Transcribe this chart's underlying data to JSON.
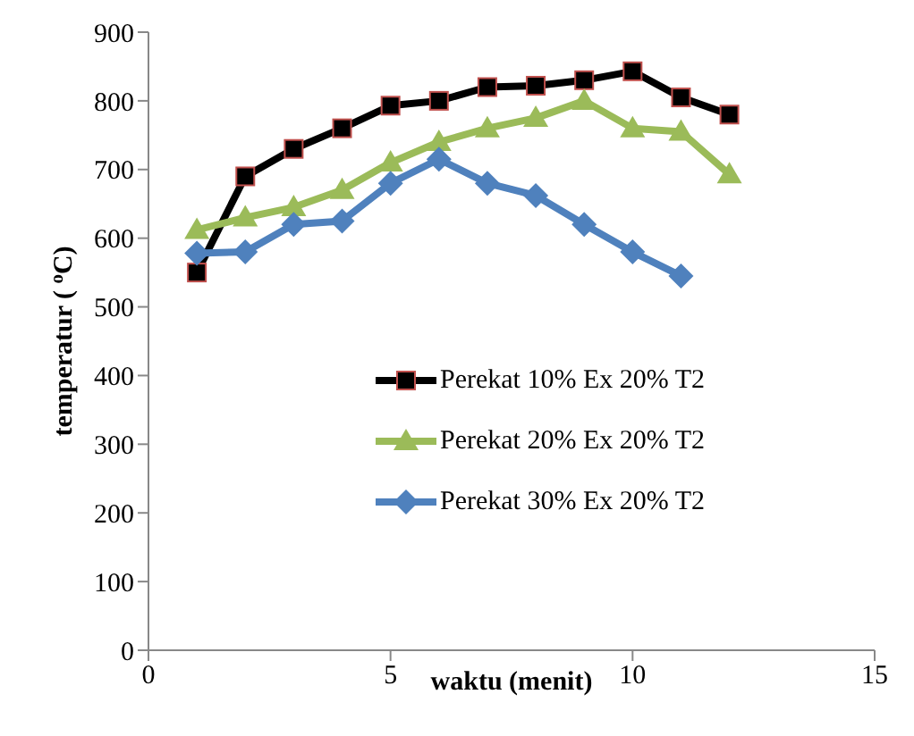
{
  "chart_data": {
    "type": "line",
    "xlabel": "waktu (menit)",
    "ylabel": "temperatur ( $^{o}$C)",
    "x": [
      1,
      2,
      3,
      4,
      5,
      6,
      7,
      8,
      9,
      10,
      11,
      12
    ],
    "xlim": [
      0,
      15
    ],
    "xticks": [
      0,
      5,
      10,
      15
    ],
    "ylim": [
      0,
      900
    ],
    "yticks": [
      0,
      100,
      200,
      300,
      400,
      500,
      600,
      700,
      800,
      900
    ],
    "grid": false,
    "legend": "right",
    "series": [
      {
        "name": "Perekat 10% Ex 20% T2",
        "color": "#000000",
        "marker": "square",
        "values": [
          550,
          690,
          730,
          760,
          793,
          800,
          820,
          822,
          830,
          843,
          805,
          780
        ]
      },
      {
        "name": "Perekat 20% Ex 20% T2",
        "color": "#9bbb59",
        "marker": "triangle",
        "values": [
          612,
          630,
          645,
          670,
          710,
          740,
          760,
          775,
          800,
          760,
          755,
          693
        ]
      },
      {
        "name": "Perekat 30% Ex 20% T2",
        "color": "#4f81bd",
        "marker": "diamond",
        "values": [
          578,
          580,
          620,
          625,
          680,
          715,
          680,
          662,
          620,
          580,
          545,
          null
        ]
      }
    ]
  }
}
